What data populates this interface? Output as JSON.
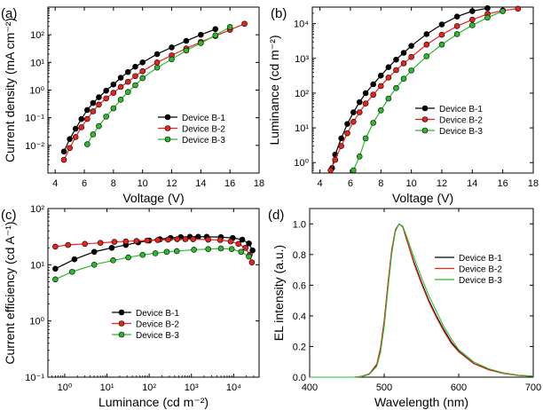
{
  "colors": {
    "b1": "#000000",
    "b2": "#e8231f",
    "b3": "#2db82d",
    "axis": "#000000"
  },
  "chart_data": [
    {
      "panel": "(a)",
      "type": "line",
      "title": "",
      "xlabel": "Voltage (V)",
      "ylabel": "Current density (mA cm⁻²)",
      "xscale": "linear",
      "yscale": "log",
      "xlim": [
        3.5,
        18
      ],
      "ylim": [
        0.001,
        1000
      ],
      "xticks": [
        4,
        6,
        8,
        10,
        12,
        14,
        16,
        18
      ],
      "yticks": [
        0.01,
        0.1,
        1,
        10,
        100
      ],
      "ytick_labels": [
        "10⁻²",
        "10⁻¹",
        "10⁰",
        "10¹",
        "10²"
      ],
      "legend": "bottom-right",
      "markers": true,
      "series": [
        {
          "name": "Device B-1",
          "x": [
            4.6,
            5.0,
            5.4,
            5.8,
            6.2,
            6.6,
            7.0,
            7.5,
            8.0,
            8.5,
            9.0,
            9.5,
            10.0,
            11.0,
            12.0,
            13.0,
            14.0,
            15.0
          ],
          "y": [
            0.006,
            0.017,
            0.04,
            0.09,
            0.19,
            0.34,
            0.55,
            0.95,
            1.6,
            2.8,
            4.5,
            7.0,
            10,
            20,
            35,
            60,
            100,
            160
          ]
        },
        {
          "name": "Device B-2",
          "x": [
            4.6,
            5.0,
            5.4,
            5.8,
            6.2,
            6.6,
            7.0,
            7.5,
            8.0,
            8.5,
            9.0,
            9.5,
            10.0,
            11.0,
            12.0,
            13.0,
            14.0,
            15.0,
            16.0,
            17.0
          ],
          "y": [
            0.003,
            0.008,
            0.02,
            0.045,
            0.09,
            0.17,
            0.3,
            0.5,
            0.8,
            1.3,
            2.0,
            3.2,
            4.8,
            10,
            18,
            32,
            55,
            90,
            150,
            250
          ]
        },
        {
          "name": "Device B-3",
          "x": [
            6.2,
            6.6,
            7.0,
            7.5,
            8.0,
            8.5,
            9.0,
            9.5,
            10.0,
            11.0,
            12.0,
            13.0,
            14.0,
            15.0,
            16.0
          ],
          "y": [
            0.011,
            0.025,
            0.05,
            0.11,
            0.22,
            0.45,
            0.85,
            1.5,
            2.7,
            6.5,
            13,
            27,
            50,
            95,
            190
          ]
        }
      ]
    },
    {
      "panel": "(b)",
      "type": "line",
      "title": "",
      "xlabel": "Voltage (V)",
      "ylabel": "Luminance (cd m⁻²)",
      "xscale": "linear",
      "yscale": "log",
      "xlim": [
        3.5,
        18
      ],
      "ylim": [
        0.5,
        30000
      ],
      "xticks": [
        4,
        6,
        8,
        10,
        12,
        14,
        16,
        18
      ],
      "yticks": [
        1,
        10,
        100,
        1000,
        10000
      ],
      "ytick_labels": [
        "10⁰",
        "10¹",
        "10²",
        "10³",
        "10⁴"
      ],
      "legend": "bottom-right",
      "markers": true,
      "series": [
        {
          "name": "Device B-1",
          "x": [
            4.8,
            5.0,
            5.4,
            5.8,
            6.2,
            6.6,
            7.0,
            7.5,
            8.0,
            8.5,
            9.0,
            9.5,
            10.0,
            11.0,
            12.0,
            13.0,
            14.0,
            15.0
          ],
          "y": [
            0.7,
            1.7,
            5,
            13,
            28,
            55,
            100,
            180,
            320,
            560,
            920,
            1450,
            2300,
            5000,
            9500,
            16000,
            23000,
            28000
          ]
        },
        {
          "name": "Device B-2",
          "x": [
            4.7,
            5.0,
            5.4,
            5.8,
            6.2,
            6.6,
            7.0,
            7.5,
            8.0,
            8.5,
            9.0,
            9.5,
            10.0,
            11.0,
            12.0,
            13.0,
            14.0,
            15.0,
            16.0,
            17.0
          ],
          "y": [
            0.6,
            1.2,
            3,
            7,
            15,
            28,
            50,
            90,
            160,
            280,
            460,
            720,
            1100,
            2500,
            4800,
            8500,
            13000,
            19000,
            24000,
            27000
          ]
        },
        {
          "name": "Device B-3",
          "x": [
            6.2,
            6.6,
            7.0,
            7.5,
            8.0,
            8.5,
            9.0,
            9.5,
            10.0,
            11.0,
            12.0,
            13.0,
            14.0,
            15.0,
            16.0
          ],
          "y": [
            0.6,
            1.5,
            5,
            14,
            32,
            70,
            140,
            260,
            450,
            1150,
            2500,
            5000,
            9000,
            15000,
            23000
          ]
        }
      ]
    },
    {
      "panel": "(c)",
      "type": "line",
      "title": "",
      "xlabel": "Luminance (cd m⁻²)",
      "ylabel": "Current efficiency (cd A⁻¹)",
      "xscale": "log",
      "yscale": "log",
      "xlim": [
        0.4,
        40000
      ],
      "ylim": [
        0.1,
        100
      ],
      "xticks": [
        1,
        10,
        100,
        1000,
        10000
      ],
      "xtick_labels": [
        "10⁰",
        "10¹",
        "10²",
        "10³",
        "10⁴"
      ],
      "yticks": [
        0.1,
        1,
        10,
        100
      ],
      "ytick_labels": [
        "10⁻¹",
        "10⁰",
        "10¹",
        "10²"
      ],
      "legend": "bottom-right",
      "markers": true,
      "series": [
        {
          "name": "Device B-1",
          "x": [
            0.6,
            1.7,
            5,
            13,
            28,
            55,
            100,
            180,
            320,
            560,
            920,
            1450,
            2300,
            5000,
            9500,
            16000,
            23000,
            28000
          ],
          "y": [
            8.5,
            12.5,
            17,
            20,
            22.5,
            25,
            27,
            28.5,
            30,
            31,
            31.5,
            31.5,
            31.5,
            31,
            30,
            28,
            24,
            18
          ]
        },
        {
          "name": "Device B-2",
          "x": [
            0.6,
            1.2,
            3,
            7,
            15,
            28,
            50,
            90,
            160,
            280,
            460,
            720,
            1100,
            2500,
            4800,
            8500,
            13000,
            19000,
            24000,
            27000
          ],
          "y": [
            21,
            22.5,
            23.5,
            24.5,
            25.5,
            26,
            26.5,
            27,
            27.5,
            28,
            28.5,
            28.5,
            28.5,
            28,
            27.5,
            26,
            23.5,
            20,
            15,
            11
          ]
        },
        {
          "name": "Device B-3",
          "x": [
            0.6,
            1.5,
            5,
            14,
            32,
            70,
            140,
            260,
            450,
            1150,
            2500,
            5000,
            9000,
            15000,
            23000
          ],
          "y": [
            5.5,
            7.5,
            10,
            12,
            13.5,
            15,
            16,
            17,
            17.5,
            18.5,
            19,
            19.5,
            19,
            17,
            14
          ]
        }
      ]
    },
    {
      "panel": "(d)",
      "type": "line",
      "title": "",
      "xlabel": "Wavelength (nm)",
      "ylabel": "EL intensity (a.u.)",
      "xscale": "linear",
      "yscale": "linear",
      "xlim": [
        400,
        700
      ],
      "ylim": [
        0,
        1.1
      ],
      "xticks": [
        400,
        500,
        600,
        700
      ],
      "yticks": [
        0.0,
        0.2,
        0.4,
        0.6,
        0.8,
        1.0
      ],
      "ytick_labels": [
        "0.0",
        "0.2",
        "0.4",
        "0.6",
        "0.8",
        "1.0"
      ],
      "legend": "top-right",
      "markers": false,
      "series": [
        {
          "name": "Device B-1",
          "x": [
            400,
            460,
            470,
            480,
            490,
            495,
            500,
            505,
            510,
            515,
            520,
            525,
            530,
            540,
            550,
            560,
            570,
            580,
            590,
            600,
            620,
            640,
            660,
            680,
            700
          ],
          "y": [
            0,
            0,
            0.005,
            0.02,
            0.08,
            0.18,
            0.36,
            0.6,
            0.82,
            0.96,
            1.0,
            0.98,
            0.9,
            0.75,
            0.62,
            0.5,
            0.4,
            0.31,
            0.23,
            0.17,
            0.09,
            0.05,
            0.025,
            0.012,
            0.006
          ]
        },
        {
          "name": "Device B-2",
          "x": [
            400,
            460,
            470,
            480,
            490,
            495,
            500,
            505,
            510,
            515,
            520,
            525,
            530,
            540,
            550,
            560,
            570,
            580,
            590,
            600,
            620,
            640,
            660,
            680,
            700
          ],
          "y": [
            0,
            0,
            0.006,
            0.022,
            0.085,
            0.19,
            0.37,
            0.61,
            0.83,
            0.96,
            1.0,
            0.98,
            0.9,
            0.74,
            0.61,
            0.49,
            0.39,
            0.3,
            0.22,
            0.165,
            0.088,
            0.048,
            0.024,
            0.011,
            0.005
          ]
        },
        {
          "name": "Device B-3",
          "x": [
            400,
            460,
            470,
            480,
            490,
            495,
            500,
            505,
            510,
            515,
            520,
            525,
            530,
            540,
            550,
            560,
            570,
            580,
            590,
            600,
            620,
            640,
            660,
            680,
            700
          ],
          "y": [
            0,
            0,
            0.004,
            0.018,
            0.07,
            0.16,
            0.33,
            0.57,
            0.8,
            0.95,
            1.0,
            0.985,
            0.92,
            0.78,
            0.65,
            0.53,
            0.43,
            0.33,
            0.25,
            0.18,
            0.1,
            0.055,
            0.028,
            0.013,
            0.006
          ]
        }
      ]
    }
  ]
}
